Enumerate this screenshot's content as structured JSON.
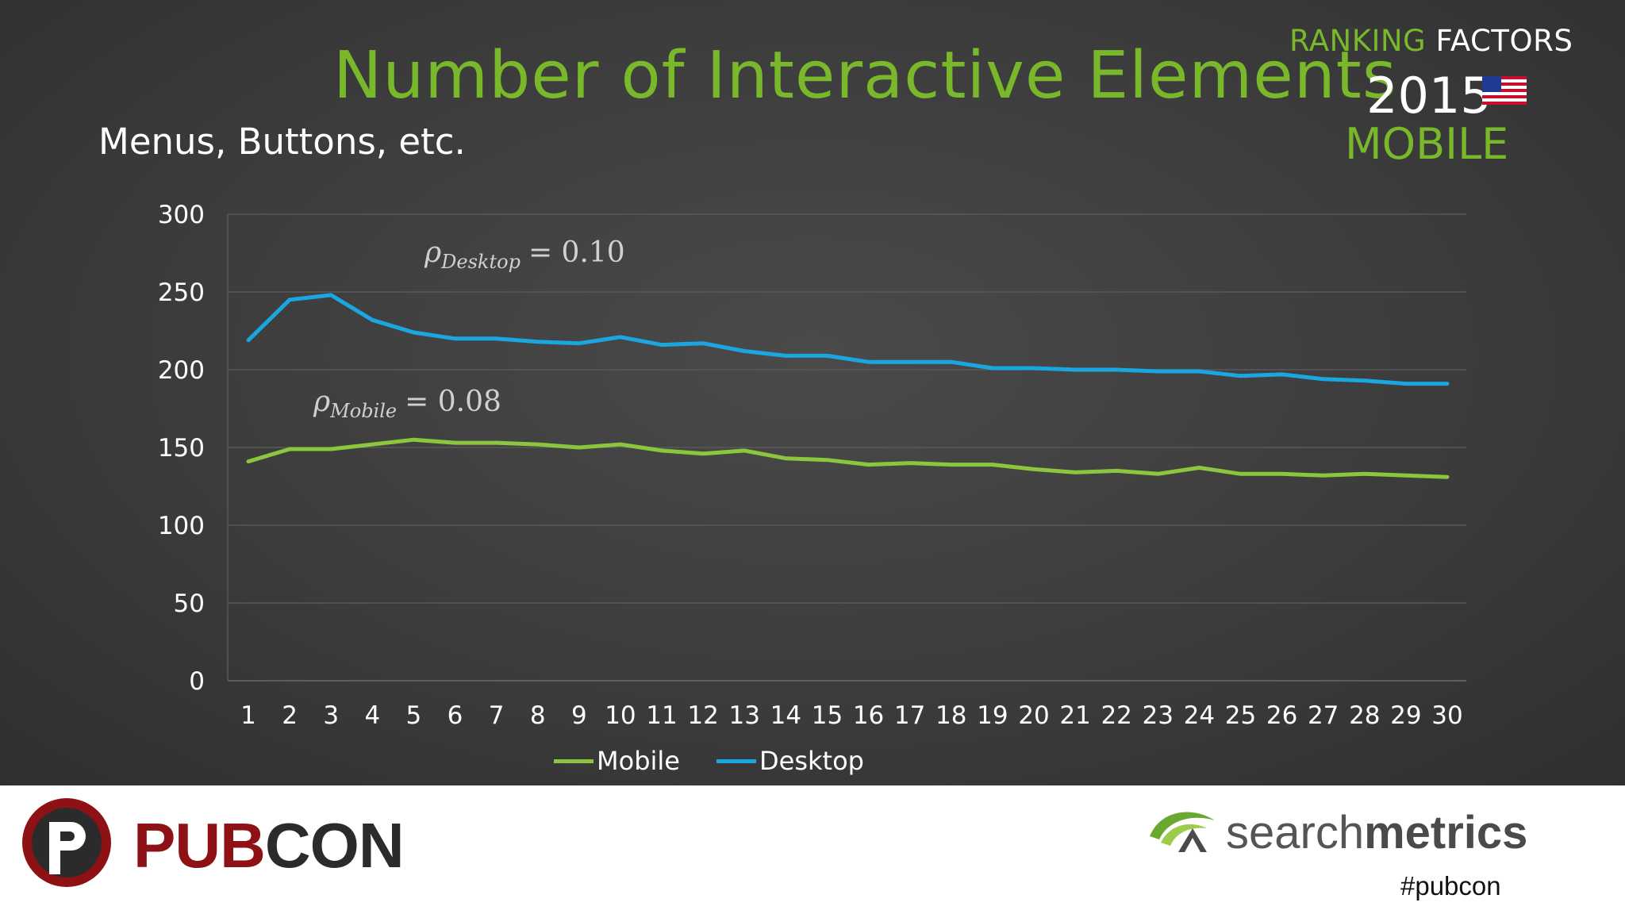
{
  "slide": {
    "title": "Number of Interactive Elements",
    "subtitle": "Menus, Buttons, etc.",
    "badge": {
      "ranking": "RANKING",
      "factors": "FACTORS",
      "year": "2015",
      "segment": "MOBILE",
      "flag_icon": "us-flag-icon"
    }
  },
  "annotations": {
    "desktop": {
      "symbol": "ρ",
      "sub": "Desktop",
      "value": "= 0.10"
    },
    "mobile": {
      "symbol": "ρ",
      "sub": "Mobile",
      "value": "= 0.08"
    }
  },
  "chart_data": {
    "type": "line",
    "title": "Number of Interactive Elements",
    "subtitle": "Menus, Buttons, etc.",
    "xlabel": "",
    "ylabel": "",
    "ylim": [
      0,
      300
    ],
    "yticks": [
      0,
      50,
      100,
      150,
      200,
      250,
      300
    ],
    "grid": true,
    "legend_position": "bottom",
    "x": [
      1,
      2,
      3,
      4,
      5,
      6,
      7,
      8,
      9,
      10,
      11,
      12,
      13,
      14,
      15,
      16,
      17,
      18,
      19,
      20,
      21,
      22,
      23,
      24,
      25,
      26,
      27,
      28,
      29,
      30
    ],
    "series": [
      {
        "name": "Mobile",
        "color": "#8cc63f",
        "values": [
          141,
          149,
          149,
          152,
          155,
          153,
          153,
          152,
          150,
          152,
          148,
          146,
          148,
          143,
          142,
          139,
          140,
          139,
          139,
          136,
          134,
          135,
          133,
          137,
          133,
          133,
          132,
          133,
          132,
          131
        ]
      },
      {
        "name": "Desktop",
        "color": "#1aa7e0",
        "values": [
          219,
          245,
          248,
          232,
          224,
          220,
          220,
          218,
          217,
          221,
          216,
          217,
          212,
          209,
          209,
          205,
          205,
          205,
          201,
          201,
          200,
          200,
          199,
          199,
          196,
          197,
          194,
          193,
          191,
          191
        ]
      }
    ]
  },
  "footer": {
    "pubcon_logo_icon": "pubcon-logo-icon",
    "pubcon_red": "PUB",
    "pubcon_dark": "CON",
    "sm_logo_icon": "searchmetrics-logo-icon",
    "sm_light": "search",
    "sm_bold": "metrics",
    "hashtag": "#pubcon"
  },
  "colors": {
    "accent_green": "#78b82a",
    "mobile_line": "#8cc63f",
    "desktop_line": "#1aa7e0",
    "pubcon_red": "#8e1116"
  }
}
